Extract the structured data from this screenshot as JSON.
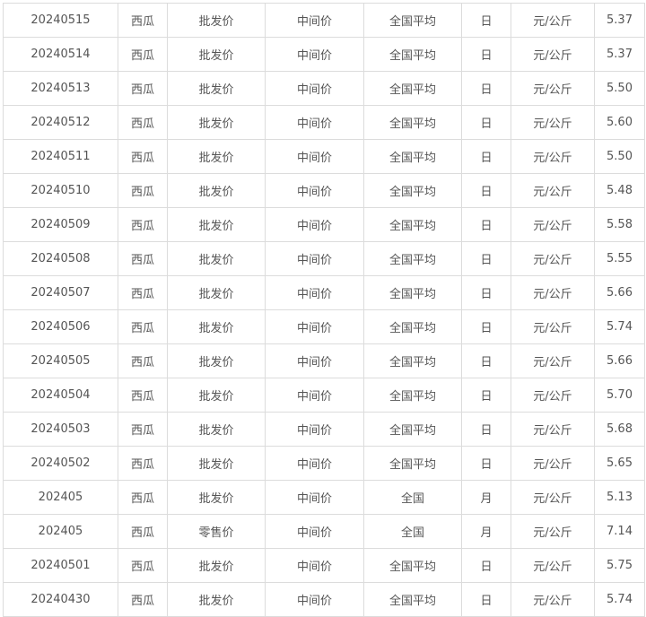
{
  "rows": [
    [
      "20240515",
      "西瓜",
      "批发价",
      "中间价",
      "全国平均",
      "日",
      "元/公斤",
      "5.37"
    ],
    [
      "20240514",
      "西瓜",
      "批发价",
      "中间价",
      "全国平均",
      "日",
      "元/公斤",
      "5.37"
    ],
    [
      "20240513",
      "西瓜",
      "批发价",
      "中间价",
      "全国平均",
      "日",
      "元/公斤",
      "5.50"
    ],
    [
      "20240512",
      "西瓜",
      "批发价",
      "中间价",
      "全国平均",
      "日",
      "元/公斤",
      "5.60"
    ],
    [
      "20240511",
      "西瓜",
      "批发价",
      "中间价",
      "全国平均",
      "日",
      "元/公斤",
      "5.50"
    ],
    [
      "20240510",
      "西瓜",
      "批发价",
      "中间价",
      "全国平均",
      "日",
      "元/公斤",
      "5.48"
    ],
    [
      "20240509",
      "西瓜",
      "批发价",
      "中间价",
      "全国平均",
      "日",
      "元/公斤",
      "5.58"
    ],
    [
      "20240508",
      "西瓜",
      "批发价",
      "中间价",
      "全国平均",
      "日",
      "元/公斤",
      "5.55"
    ],
    [
      "20240507",
      "西瓜",
      "批发价",
      "中间价",
      "全国平均",
      "日",
      "元/公斤",
      "5.66"
    ],
    [
      "20240506",
      "西瓜",
      "批发价",
      "中间价",
      "全国平均",
      "日",
      "元/公斤",
      "5.74"
    ],
    [
      "20240505",
      "西瓜",
      "批发价",
      "中间价",
      "全国平均",
      "日",
      "元/公斤",
      "5.66"
    ],
    [
      "20240504",
      "西瓜",
      "批发价",
      "中间价",
      "全国平均",
      "日",
      "元/公斤",
      "5.70"
    ],
    [
      "20240503",
      "西瓜",
      "批发价",
      "中间价",
      "全国平均",
      "日",
      "元/公斤",
      "5.68"
    ],
    [
      "20240502",
      "西瓜",
      "批发价",
      "中间价",
      "全国平均",
      "日",
      "元/公斤",
      "5.65"
    ],
    [
      "202405",
      "西瓜",
      "批发价",
      "中间价",
      "全国",
      "月",
      "元/公斤",
      "5.13"
    ],
    [
      "202405",
      "西瓜",
      "零售价",
      "中间价",
      "全国",
      "月",
      "元/公斤",
      "7.14"
    ],
    [
      "20240501",
      "西瓜",
      "批发价",
      "中间价",
      "全国平均",
      "日",
      "元/公斤",
      "5.75"
    ],
    [
      "20240430",
      "西瓜",
      "批发价",
      "中间价",
      "全国平均",
      "日",
      "元/公斤",
      "5.74"
    ]
  ]
}
